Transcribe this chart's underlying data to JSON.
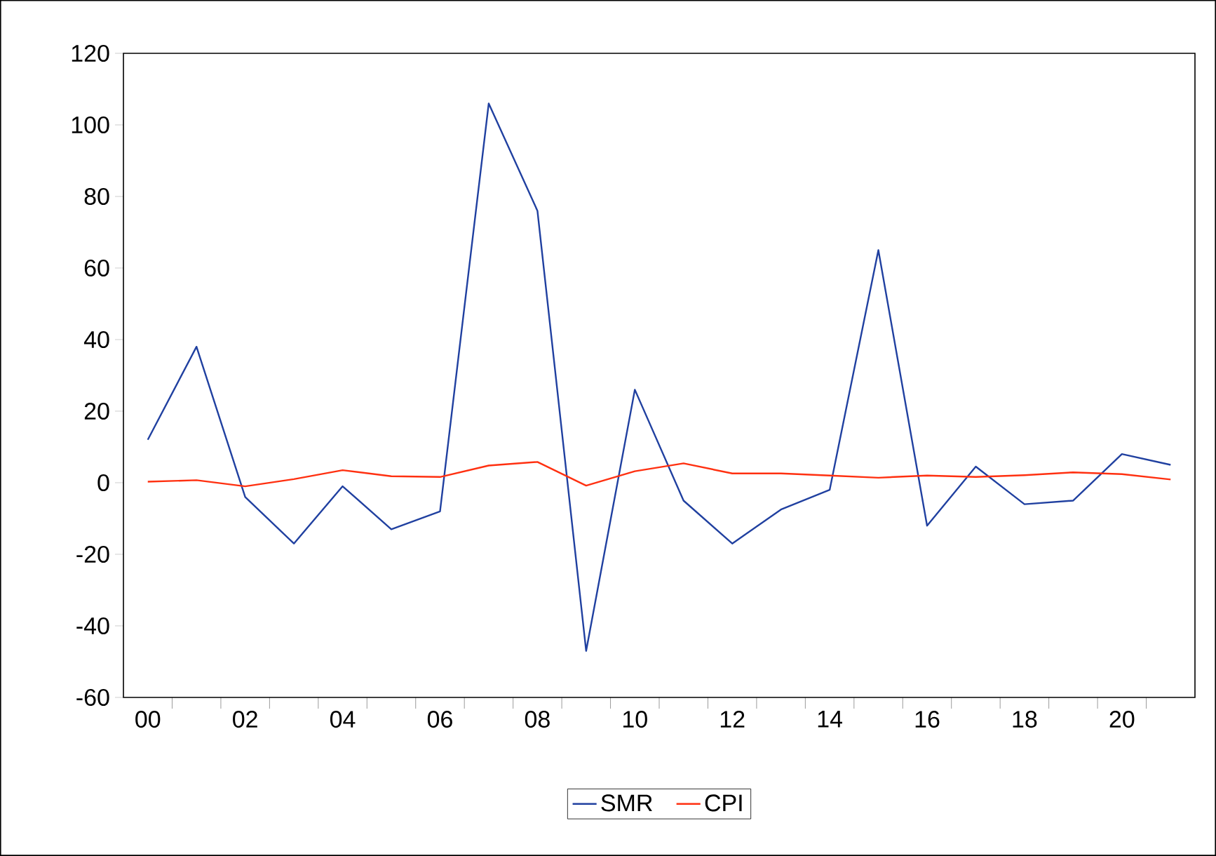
{
  "chart_data": {
    "type": "line",
    "categories": [
      "00",
      null,
      "02",
      null,
      "04",
      null,
      "06",
      null,
      "08",
      null,
      "10",
      null,
      "12",
      null,
      "14",
      null,
      "16",
      null,
      "18",
      null,
      "20",
      null
    ],
    "series": [
      {
        "name": "SMR",
        "color": "#2040a0",
        "values": [
          12,
          38,
          -4,
          -17,
          -1,
          -13,
          -8,
          106,
          76,
          -47,
          26,
          -5,
          -17,
          -7.5,
          -2,
          65,
          -12,
          4.5,
          -6,
          -5,
          8,
          5
        ]
      },
      {
        "name": "CPI",
        "color": "#ff3010",
        "values": [
          0.3,
          0.7,
          -1,
          1,
          3.5,
          1.8,
          1.6,
          4.8,
          5.8,
          -0.8,
          3.2,
          5.4,
          2.6,
          2.6,
          2.0,
          1.4,
          2.0,
          1.6,
          2.1,
          2.9,
          2.4,
          0.9
        ]
      }
    ],
    "ylim": [
      -60,
      120
    ],
    "yticks": [
      -60,
      -40,
      -20,
      0,
      20,
      40,
      60,
      80,
      100,
      120
    ],
    "grid": false,
    "legend": "bottom",
    "marker": "none",
    "line_style": "solid"
  }
}
